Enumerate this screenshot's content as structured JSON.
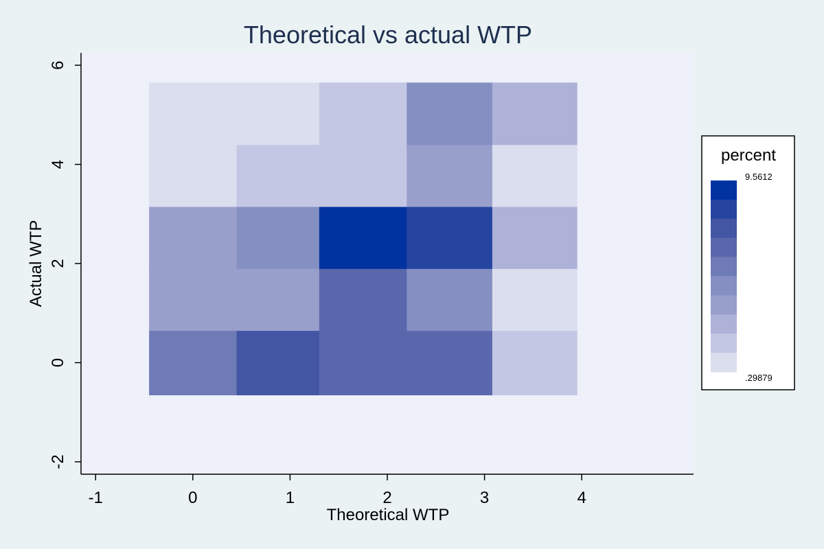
{
  "chart_data": {
    "type": "heatmap",
    "title": "Theoretical vs actual WTP",
    "xlabel": "Theoretical WTP",
    "ylabel": "Actual WTP",
    "xlim": [
      -1.15,
      5.15
    ],
    "ylim": [
      -2.25,
      6.25
    ],
    "xticks": [
      -1,
      0,
      1,
      2,
      3,
      4
    ],
    "yticks": [
      -2,
      0,
      2,
      4,
      6
    ],
    "legend": {
      "title": "percent",
      "max_label": "9.5612",
      "min_label": ".29879",
      "position": "right",
      "colors": [
        "#dadeef",
        "#c4c7e3",
        "#aeb1d8",
        "#999fcb",
        "#858fc2",
        "#6f7bb6",
        "#5a67ac",
        "#4356a3",
        "#2545a0",
        "#0032a0"
      ]
    },
    "cells": [
      {
        "x0": -0.45,
        "x1": 0.45,
        "y0": -0.65,
        "y1": 0.65,
        "level": 5
      },
      {
        "x0": 0.45,
        "x1": 1.3,
        "y0": -0.65,
        "y1": 0.65,
        "level": 7
      },
      {
        "x0": 1.3,
        "x1": 2.2,
        "y0": -0.65,
        "y1": 0.65,
        "level": 6
      },
      {
        "x0": 2.2,
        "x1": 3.08,
        "y0": -0.65,
        "y1": 0.65,
        "level": 6
      },
      {
        "x0": 3.08,
        "x1": 3.95,
        "y0": -0.65,
        "y1": 0.65,
        "level": 1
      },
      {
        "x0": -0.45,
        "x1": 0.45,
        "y0": 0.65,
        "y1": 1.9,
        "level": 3
      },
      {
        "x0": 0.45,
        "x1": 1.3,
        "y0": 0.65,
        "y1": 1.9,
        "level": 3
      },
      {
        "x0": 1.3,
        "x1": 2.2,
        "y0": 0.65,
        "y1": 1.9,
        "level": 6
      },
      {
        "x0": 2.2,
        "x1": 3.08,
        "y0": 0.65,
        "y1": 1.9,
        "level": 4
      },
      {
        "x0": 3.08,
        "x1": 3.95,
        "y0": 0.65,
        "y1": 1.9,
        "level": 0
      },
      {
        "x0": -0.45,
        "x1": 0.45,
        "y0": 1.9,
        "y1": 3.15,
        "level": 3
      },
      {
        "x0": 0.45,
        "x1": 1.3,
        "y0": 1.9,
        "y1": 3.15,
        "level": 4
      },
      {
        "x0": 1.3,
        "x1": 2.2,
        "y0": 1.9,
        "y1": 3.15,
        "level": 9
      },
      {
        "x0": 2.2,
        "x1": 3.08,
        "y0": 1.9,
        "y1": 3.15,
        "level": 8
      },
      {
        "x0": 3.08,
        "x1": 3.95,
        "y0": 1.9,
        "y1": 3.15,
        "level": 2
      },
      {
        "x0": -0.45,
        "x1": 0.45,
        "y0": 3.15,
        "y1": 4.4,
        "level": 0
      },
      {
        "x0": 0.45,
        "x1": 1.3,
        "y0": 3.15,
        "y1": 4.4,
        "level": 1
      },
      {
        "x0": 1.3,
        "x1": 2.2,
        "y0": 3.15,
        "y1": 4.4,
        "level": 1
      },
      {
        "x0": 2.2,
        "x1": 3.08,
        "y0": 3.15,
        "y1": 4.4,
        "level": 3
      },
      {
        "x0": 3.08,
        "x1": 3.95,
        "y0": 3.15,
        "y1": 4.4,
        "level": 0
      },
      {
        "x0": -0.45,
        "x1": 0.45,
        "y0": 4.4,
        "y1": 5.65,
        "level": 0
      },
      {
        "x0": 0.45,
        "x1": 1.3,
        "y0": 4.4,
        "y1": 5.65,
        "level": 0
      },
      {
        "x0": 1.3,
        "x1": 2.2,
        "y0": 4.4,
        "y1": 5.65,
        "level": 1
      },
      {
        "x0": 2.2,
        "x1": 3.08,
        "y0": 4.4,
        "y1": 5.65,
        "level": 4
      },
      {
        "x0": 3.08,
        "x1": 3.95,
        "y0": 4.4,
        "y1": 5.65,
        "level": 2
      }
    ],
    "colors": {
      "page_background": "#eaf2f3",
      "plot_background": "#eef0fa",
      "title": "#1e2f4f",
      "axis": "#000000"
    }
  }
}
